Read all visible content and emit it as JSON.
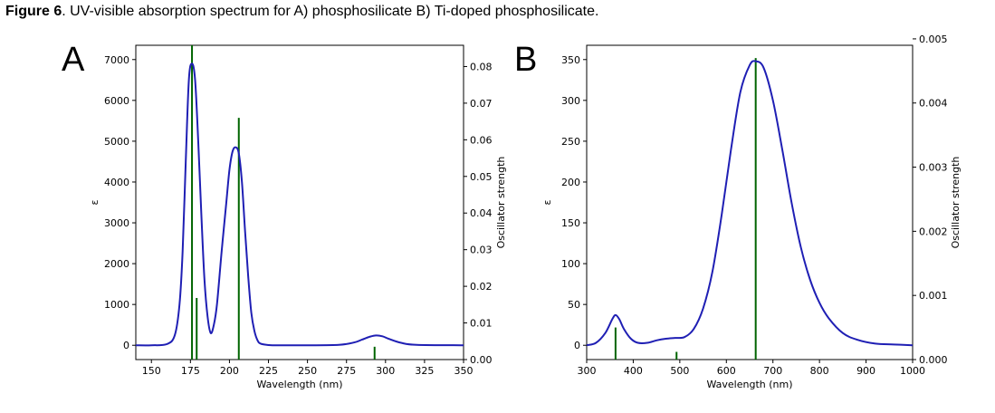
{
  "caption": {
    "figure_label": "Figure 6",
    "text": ". UV-visible absorption spectrum for A) phosphosilicate B) Ti-doped phosphosilicate."
  },
  "colors": {
    "curve": "#1f1fb4",
    "sticks": "#006400"
  },
  "chart_data": [
    {
      "type": "line",
      "panel_label": "A",
      "xlabel": "Wavelength (nm)",
      "ylabel": "ε",
      "y2label": "Oscillator strength",
      "xlim": [
        140,
        350
      ],
      "ylim": [
        -350,
        7350
      ],
      "y2lim": [
        0,
        0.0858
      ],
      "x_ticks": [
        150,
        175,
        200,
        225,
        250,
        275,
        300,
        325,
        350
      ],
      "y_ticks": [
        0,
        1000,
        2000,
        3000,
        4000,
        5000,
        6000,
        7000
      ],
      "y2_ticks": [
        "0.00",
        "0.01",
        "0.02",
        "0.03",
        "0.04",
        "0.05",
        "0.06",
        "0.07",
        "0.08"
      ],
      "spectrum": {
        "x": [
          140,
          150,
          160,
          165,
          168,
          170,
          172,
          174,
          176,
          178,
          180,
          182,
          184,
          186,
          188,
          190,
          192,
          195,
          198,
          200,
          202,
          204,
          206,
          208,
          210,
          212,
          214,
          216,
          218,
          220,
          225,
          230,
          250,
          270,
          280,
          285,
          290,
          294,
          298,
          302,
          310,
          320,
          350
        ],
        "y": [
          0,
          0,
          30,
          250,
          1000,
          2300,
          4500,
          6500,
          6900,
          6500,
          5000,
          3200,
          1600,
          700,
          300,
          500,
          1000,
          2300,
          3500,
          4300,
          4750,
          4850,
          4700,
          4000,
          2800,
          1700,
          800,
          350,
          120,
          40,
          5,
          0,
          0,
          10,
          70,
          140,
          210,
          240,
          220,
          160,
          60,
          10,
          0
        ]
      },
      "oscillators": {
        "x": [
          176,
          179,
          206,
          293
        ],
        "f": [
          0.0858,
          0.0168,
          0.066,
          0.0035
        ]
      }
    },
    {
      "type": "line",
      "panel_label": "B",
      "xlabel": "Wavelength (nm)",
      "ylabel": "ε",
      "y2label": "Oscillator strength",
      "xlim": [
        300,
        1000
      ],
      "ylim": [
        -17.5,
        367.5
      ],
      "y2lim": [
        0,
        0.0049
      ],
      "x_ticks": [
        300,
        400,
        500,
        600,
        700,
        800,
        900,
        1000
      ],
      "y_ticks": [
        0,
        50,
        100,
        150,
        200,
        250,
        300,
        350
      ],
      "y2_ticks": [
        "0.000",
        "0.001",
        "0.002",
        "0.003",
        "0.004",
        "0.005"
      ],
      "spectrum": {
        "x": [
          300,
          320,
          340,
          355,
          362,
          370,
          380,
          395,
          410,
          430,
          450,
          470,
          490,
          510,
          530,
          550,
          570,
          590,
          610,
          630,
          650,
          663,
          680,
          700,
          720,
          740,
          760,
          780,
          800,
          820,
          850,
          880,
          920,
          960,
          1000
        ],
        "y": [
          0,
          3,
          15,
          32,
          37,
          32,
          20,
          8,
          3,
          3,
          6,
          8,
          9,
          10,
          20,
          45,
          90,
          160,
          240,
          310,
          343,
          348,
          340,
          300,
          240,
          175,
          120,
          80,
          52,
          33,
          15,
          7,
          2,
          1,
          0
        ],
        "ylim_note": ""
      },
      "oscillators": {
        "x": [
          362,
          493,
          663
        ],
        "f": [
          0.0005,
          0.00012,
          0.0047
        ]
      }
    }
  ]
}
